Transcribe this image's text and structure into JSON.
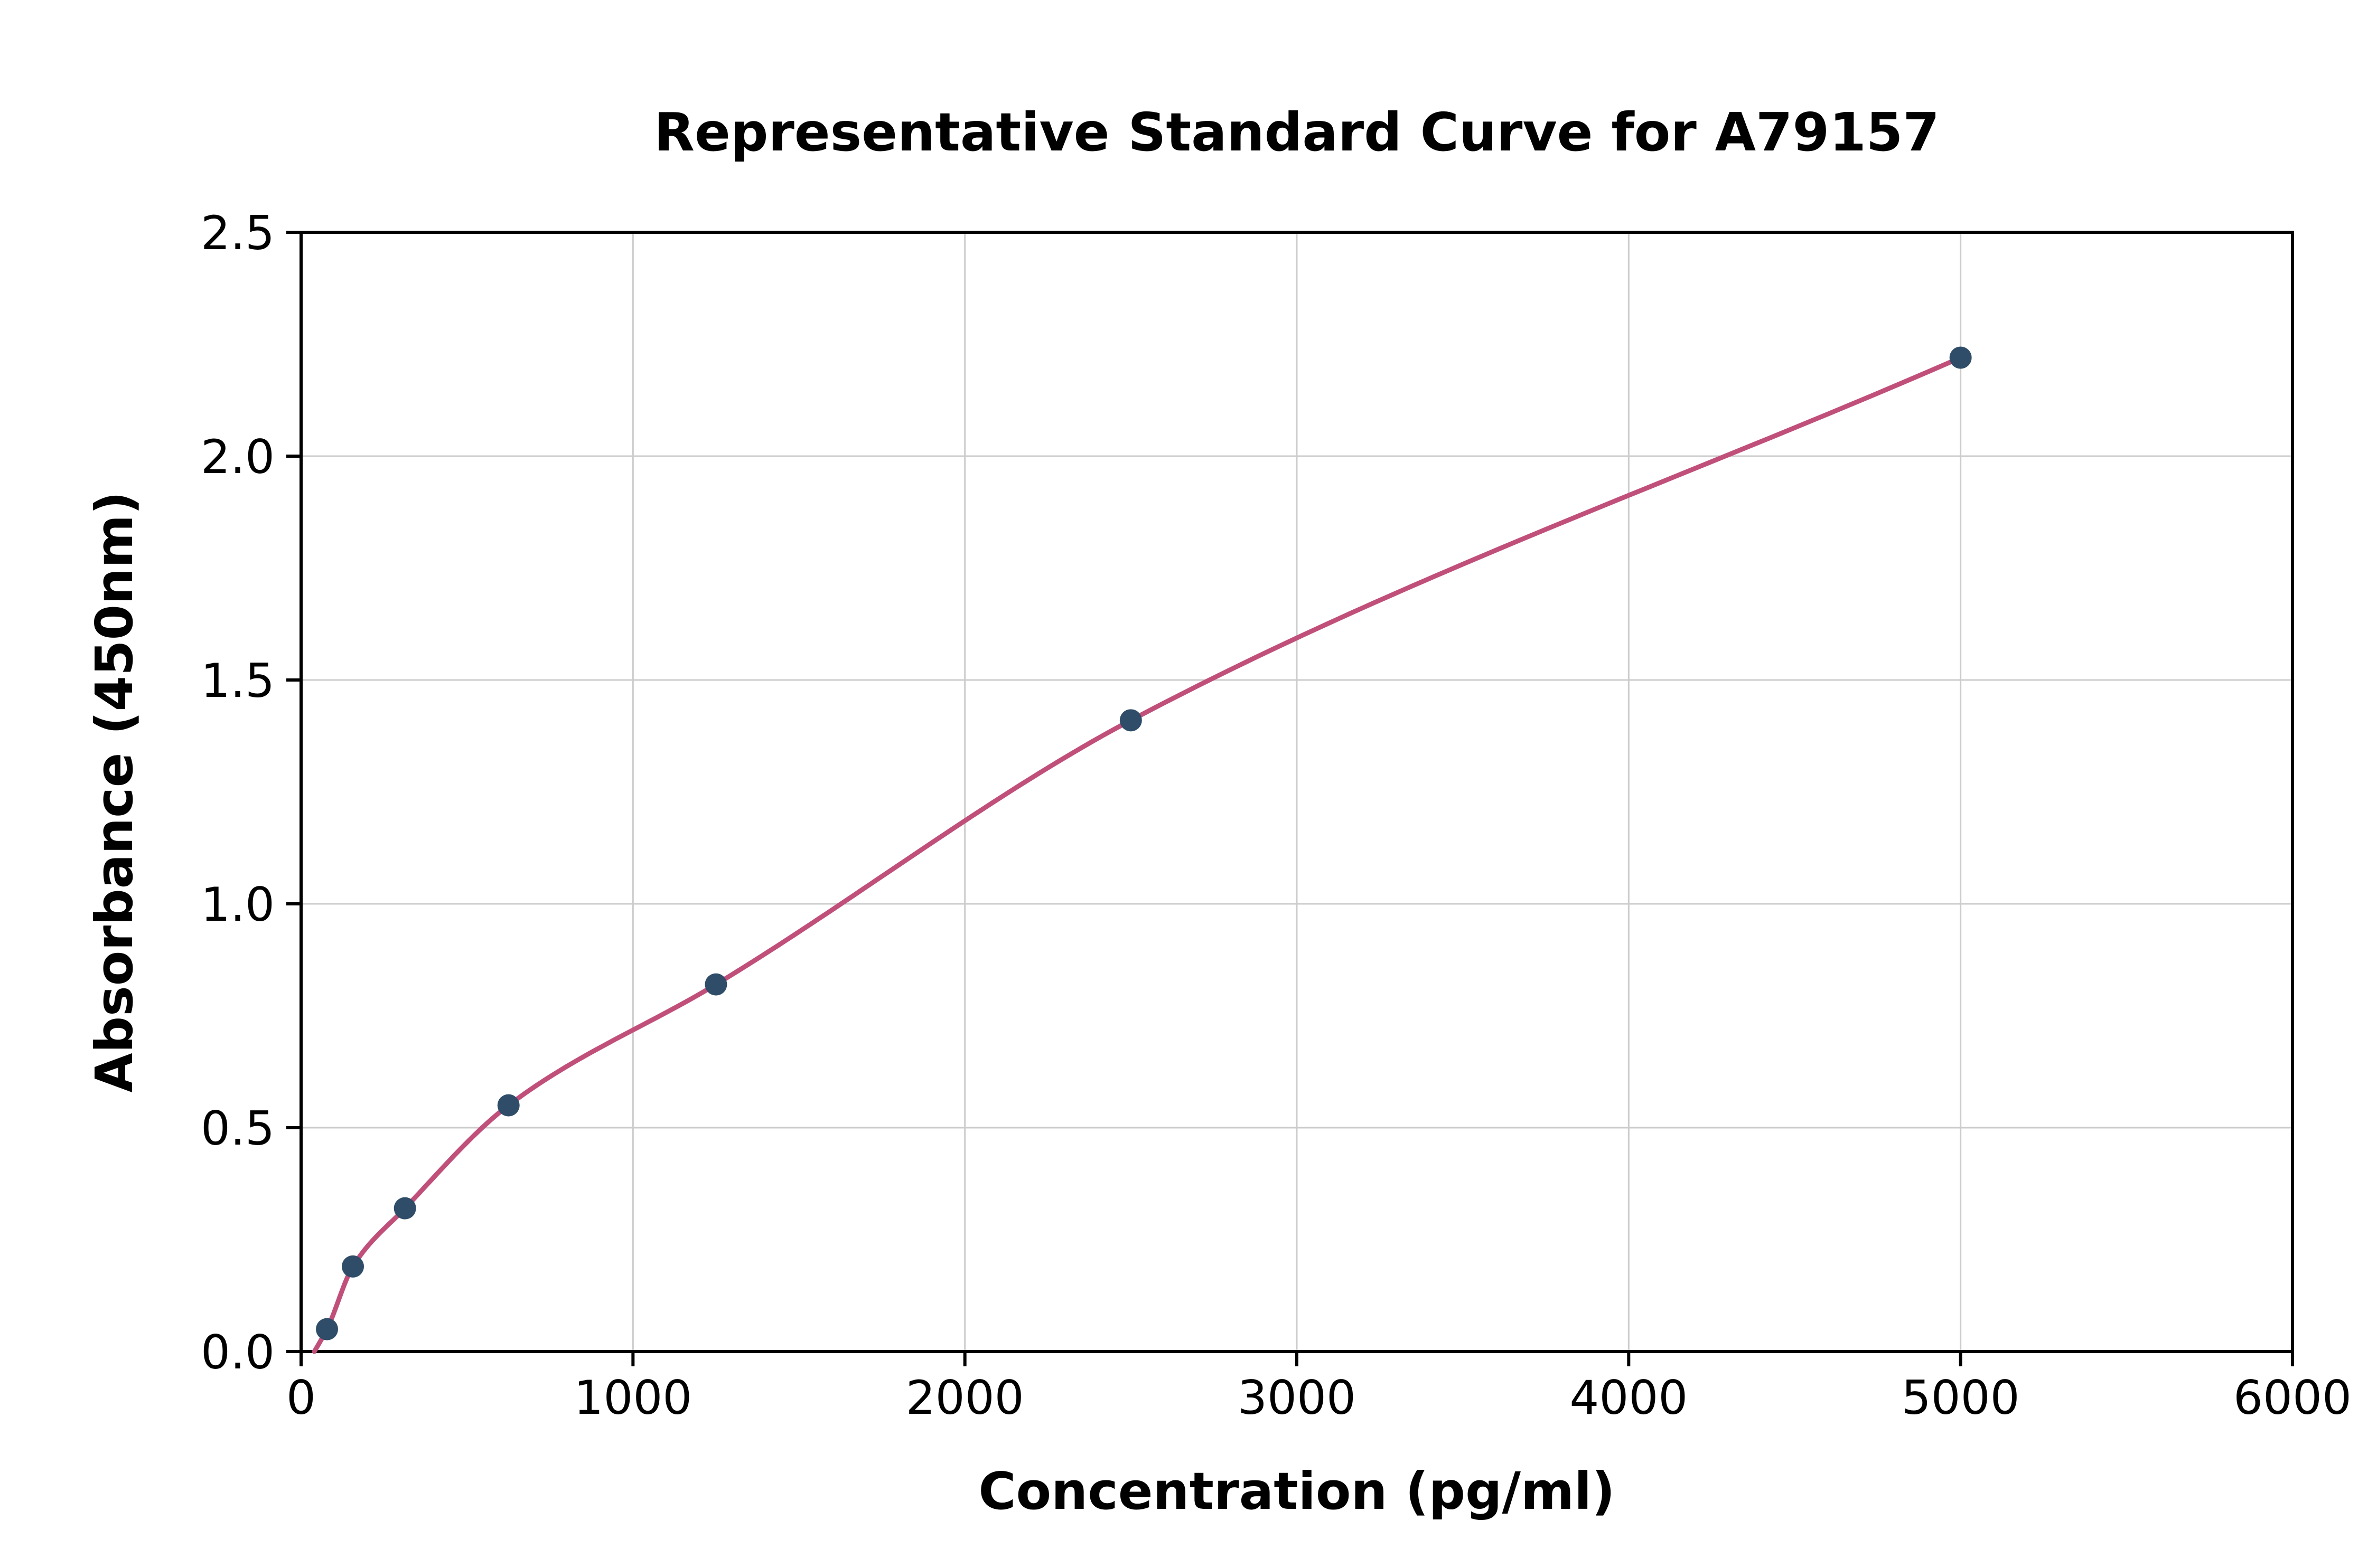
{
  "chart_data": {
    "type": "scatter",
    "title": "Representative Standard Curve for A79157",
    "xlabel": "Concentration (pg/ml)",
    "ylabel": "Absorbance (450nm)",
    "xlim": [
      0,
      6000
    ],
    "ylim": [
      0,
      2.5
    ],
    "x_ticks": [
      0,
      1000,
      2000,
      3000,
      4000,
      5000,
      6000
    ],
    "x_tick_labels": [
      "0",
      "1000",
      "2000",
      "3000",
      "4000",
      "5000",
      "6000"
    ],
    "y_ticks": [
      0.0,
      0.5,
      1.0,
      1.5,
      2.0,
      2.5
    ],
    "y_tick_labels": [
      "0.0",
      "0.5",
      "1.0",
      "1.5",
      "2.0",
      "2.5"
    ],
    "grid": true,
    "legend": "none",
    "points": {
      "x": [
        78,
        156,
        313,
        625,
        1250,
        2500,
        5000
      ],
      "y": [
        0.05,
        0.19,
        0.32,
        0.55,
        0.82,
        1.41,
        2.22
      ]
    },
    "fit_curve": {
      "anchor_x": 40,
      "anchor_y": 0.0
    },
    "colors": {
      "point": "#2f4d68",
      "curve": "#c0507a",
      "grid": "#cccccc",
      "axis": "#000000",
      "background": "#ffffff"
    }
  }
}
